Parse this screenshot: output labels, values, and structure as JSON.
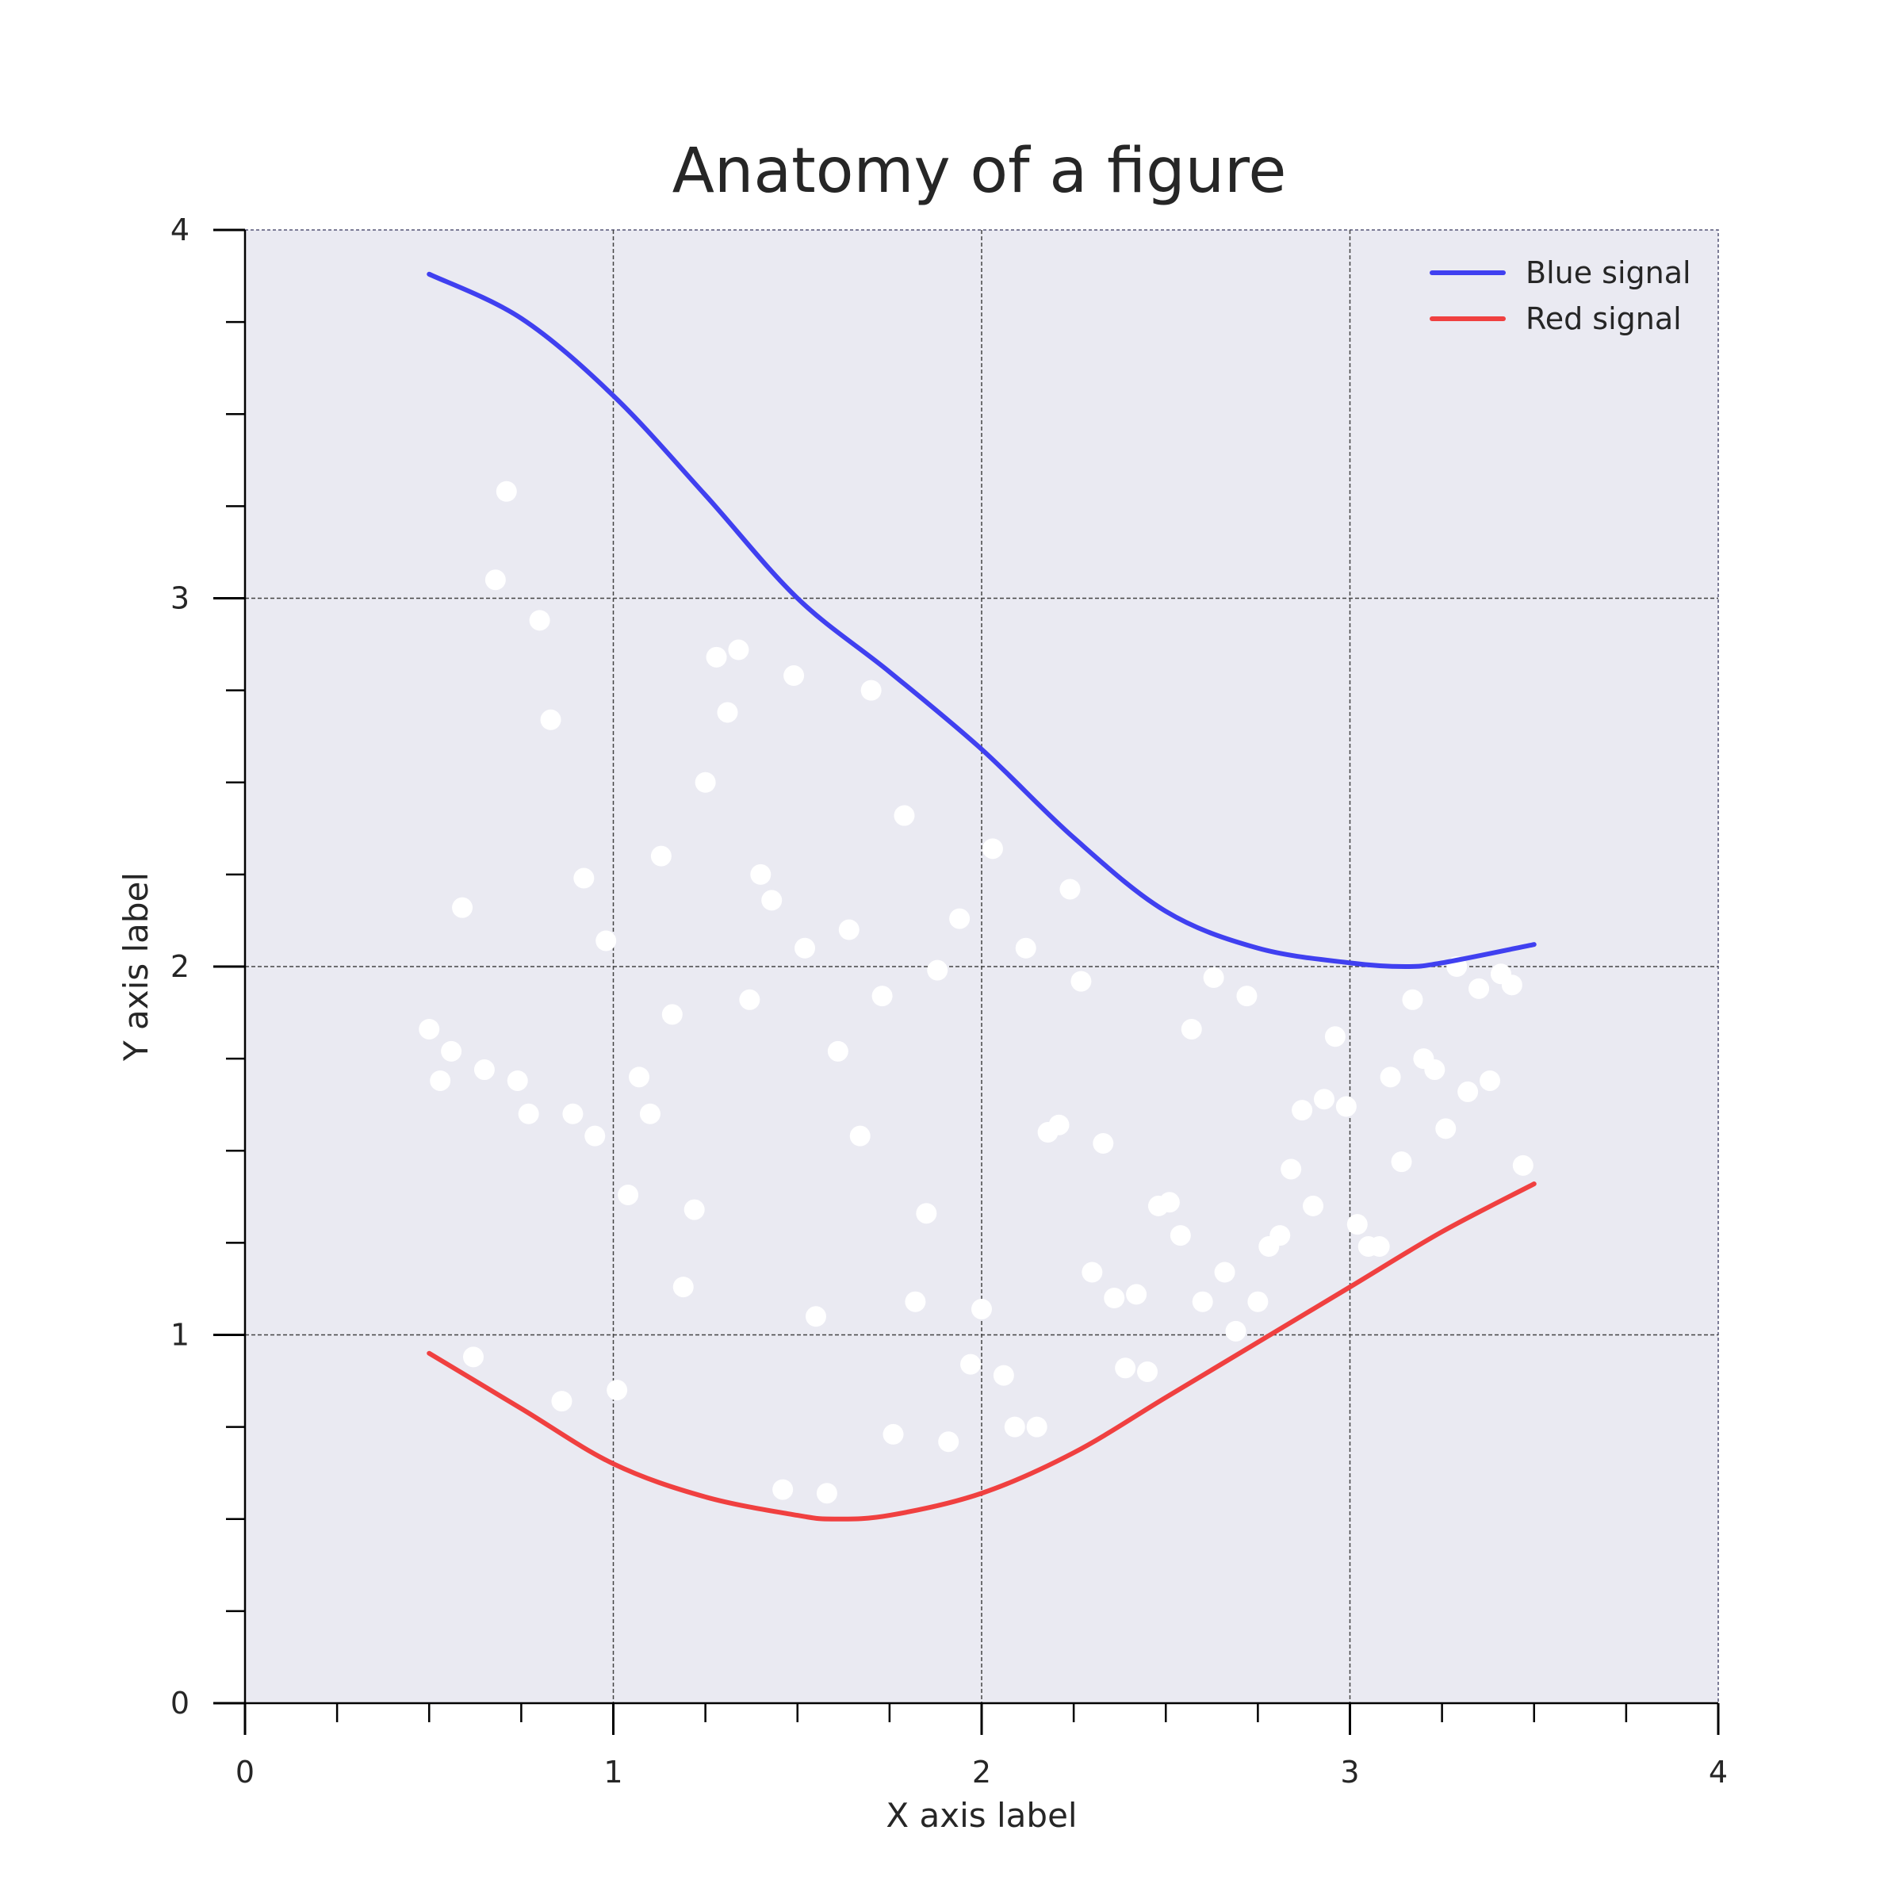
{
  "chart_data": {
    "type": "line",
    "title": "Anatomy of a figure",
    "xlabel": "X axis label",
    "ylabel": "Y axis label",
    "xlim": [
      0,
      4
    ],
    "ylim": [
      0,
      4
    ],
    "xticks_major": [
      "0",
      "1",
      "2",
      "3",
      "4"
    ],
    "yticks_major": [
      "0",
      "1",
      "2",
      "3",
      "4"
    ],
    "minor_tick_step": 0.25,
    "grid": true,
    "legend_position": "top-right",
    "background_color": "#eaeaf2",
    "series": [
      {
        "name": "Blue signal",
        "kind": "line",
        "color": "#4040f0",
        "x": [
          0.5,
          0.75,
          1.0,
          1.25,
          1.5,
          1.75,
          2.0,
          2.25,
          2.5,
          2.75,
          3.0,
          3.15,
          3.25,
          3.5
        ],
        "y": [
          3.88,
          3.76,
          3.55,
          3.28,
          3.0,
          2.8,
          2.59,
          2.35,
          2.15,
          2.05,
          2.01,
          2.0,
          2.01,
          2.06
        ]
      },
      {
        "name": "Red signal",
        "kind": "line",
        "color": "#f04040",
        "x": [
          0.5,
          0.75,
          1.0,
          1.25,
          1.5,
          1.6,
          1.75,
          2.0,
          2.25,
          2.5,
          2.75,
          3.0,
          3.25,
          3.5
        ],
        "y": [
          0.95,
          0.8,
          0.65,
          0.56,
          0.51,
          0.5,
          0.51,
          0.57,
          0.68,
          0.83,
          0.98,
          1.13,
          1.28,
          1.41
        ]
      }
    ],
    "scatter": {
      "color": "#ffffff",
      "points": [
        [
          0.5,
          1.83
        ],
        [
          0.53,
          1.69
        ],
        [
          0.56,
          1.77
        ],
        [
          0.59,
          2.16
        ],
        [
          0.62,
          0.94
        ],
        [
          0.65,
          1.72
        ],
        [
          0.68,
          3.05
        ],
        [
          0.71,
          3.29
        ],
        [
          0.74,
          1.69
        ],
        [
          0.77,
          1.6
        ],
        [
          0.8,
          2.94
        ],
        [
          0.83,
          2.67
        ],
        [
          0.86,
          0.82
        ],
        [
          0.89,
          1.6
        ],
        [
          0.92,
          2.24
        ],
        [
          0.95,
          1.54
        ],
        [
          0.98,
          2.07
        ],
        [
          1.01,
          0.85
        ],
        [
          1.04,
          1.38
        ],
        [
          1.07,
          1.7
        ],
        [
          1.1,
          1.6
        ],
        [
          1.13,
          2.3
        ],
        [
          1.16,
          1.87
        ],
        [
          1.19,
          1.13
        ],
        [
          1.22,
          1.34
        ],
        [
          1.25,
          2.5
        ],
        [
          1.28,
          2.84
        ],
        [
          1.31,
          2.69
        ],
        [
          1.34,
          2.86
        ],
        [
          1.37,
          1.91
        ],
        [
          1.4,
          2.25
        ],
        [
          1.43,
          2.18
        ],
        [
          1.46,
          0.58
        ],
        [
          1.49,
          2.79
        ],
        [
          1.52,
          2.05
        ],
        [
          1.55,
          1.05
        ],
        [
          1.58,
          0.57
        ],
        [
          1.61,
          1.77
        ],
        [
          1.64,
          2.1
        ],
        [
          1.67,
          1.54
        ],
        [
          1.7,
          2.75
        ],
        [
          1.73,
          1.92
        ],
        [
          1.76,
          0.73
        ],
        [
          1.79,
          2.41
        ],
        [
          1.82,
          1.09
        ],
        [
          1.85,
          1.33
        ],
        [
          1.88,
          1.99
        ],
        [
          1.91,
          0.71
        ],
        [
          1.94,
          2.13
        ],
        [
          1.97,
          0.92
        ],
        [
          2.0,
          1.07
        ],
        [
          2.03,
          2.32
        ],
        [
          2.06,
          0.89
        ],
        [
          2.09,
          0.75
        ],
        [
          2.12,
          2.05
        ],
        [
          2.15,
          0.75
        ],
        [
          2.18,
          1.55
        ],
        [
          2.21,
          1.57
        ],
        [
          2.24,
          2.21
        ],
        [
          2.27,
          1.96
        ],
        [
          2.3,
          1.17
        ],
        [
          2.33,
          1.52
        ],
        [
          2.36,
          1.1
        ],
        [
          2.39,
          0.91
        ],
        [
          2.42,
          1.11
        ],
        [
          2.45,
          0.9
        ],
        [
          2.48,
          1.35
        ],
        [
          2.51,
          1.36
        ],
        [
          2.54,
          1.27
        ],
        [
          2.57,
          1.83
        ],
        [
          2.6,
          1.09
        ],
        [
          2.63,
          1.97
        ],
        [
          2.66,
          1.17
        ],
        [
          2.69,
          1.01
        ],
        [
          2.72,
          1.92
        ],
        [
          2.75,
          1.09
        ],
        [
          2.78,
          1.24
        ],
        [
          2.81,
          1.27
        ],
        [
          2.84,
          1.45
        ],
        [
          2.87,
          1.61
        ],
        [
          2.9,
          1.35
        ],
        [
          2.93,
          1.64
        ],
        [
          2.96,
          1.81
        ],
        [
          2.99,
          1.62
        ],
        [
          3.02,
          1.3
        ],
        [
          3.05,
          1.24
        ],
        [
          3.08,
          1.24
        ],
        [
          3.11,
          1.7
        ],
        [
          3.14,
          1.47
        ],
        [
          3.17,
          1.91
        ],
        [
          3.2,
          1.75
        ],
        [
          3.23,
          1.72
        ],
        [
          3.26,
          1.56
        ],
        [
          3.29,
          2.0
        ],
        [
          3.32,
          1.66
        ],
        [
          3.35,
          1.94
        ],
        [
          3.38,
          1.69
        ],
        [
          3.41,
          1.98
        ],
        [
          3.44,
          1.95
        ],
        [
          3.47,
          1.46
        ]
      ]
    }
  }
}
